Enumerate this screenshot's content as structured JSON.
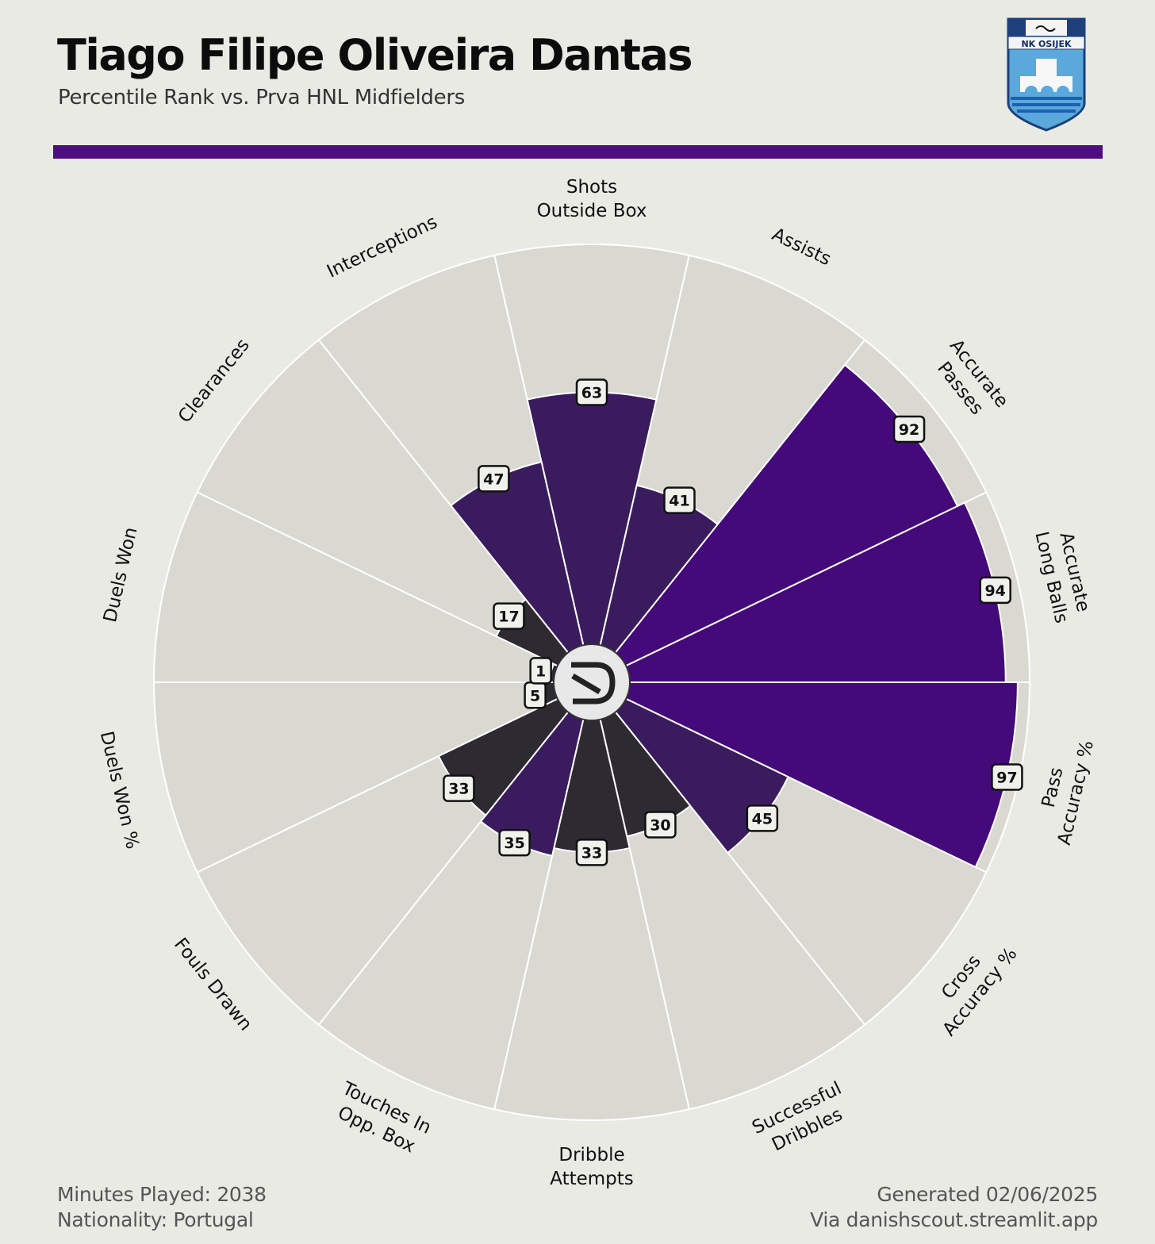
{
  "header": {
    "title": "Tiago Filipe Oliveira Dantas",
    "subtitle": "Percentile Rank vs. Prva HNL Midfielders",
    "club_crest_text": "NK OSIJEK"
  },
  "footer": {
    "minutes": "Minutes Played: 2038",
    "nationality": "Nationality: Portugal",
    "generated": "Generated 02/06/2025",
    "via": "Via danishscout.streamlit.app"
  },
  "colors": {
    "background": "#eaeae4",
    "slice_background": "#d9d9d2",
    "accent": "#4c0e80",
    "low": "#2e2a32",
    "mid": "#3a1c5e",
    "high": "#440a7a"
  },
  "chart_data": {
    "type": "polar_bar",
    "scale": [
      0,
      100
    ],
    "start": "top",
    "direction": "clockwise",
    "categories": [
      {
        "label": "Shots\nOutside Box",
        "value": 63
      },
      {
        "label": "Assists",
        "value": 41
      },
      {
        "label": "Accurate\nPasses",
        "value": 92
      },
      {
        "label": "Accurate\nLong Balls",
        "value": 94
      },
      {
        "label": "Pass\nAccuracy %",
        "value": 97
      },
      {
        "label": "Cross\nAccuracy %",
        "value": 45
      },
      {
        "label": "Successful\nDribbles",
        "value": 30
      },
      {
        "label": "Dribble\nAttempts",
        "value": 33
      },
      {
        "label": "Touches In\nOpp. Box",
        "value": 35
      },
      {
        "label": "Fouls Drawn",
        "value": 33
      },
      {
        "label": "Duels Won %",
        "value": 5
      },
      {
        "label": "Duels Won",
        "value": 1
      },
      {
        "label": "Clearances",
        "value": 17
      },
      {
        "label": "Interceptions",
        "value": 47
      }
    ]
  }
}
